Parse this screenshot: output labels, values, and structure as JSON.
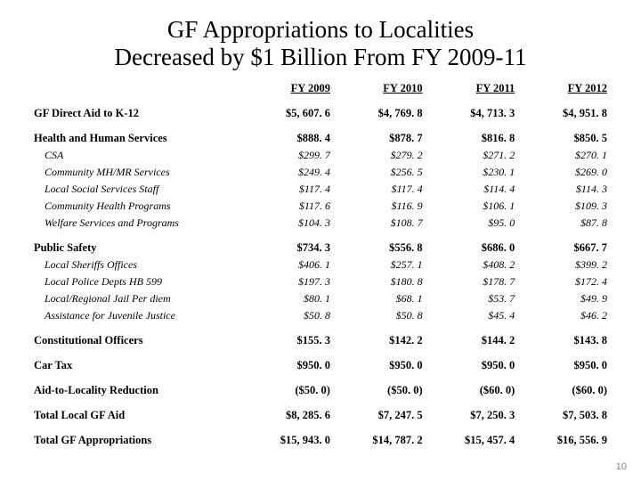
{
  "title_line1": "GF Appropriations to Localities",
  "title_line2": "Decreased by $1 Billion From FY 2009-11",
  "page_number": "10",
  "table": {
    "columns": [
      " FY 2009",
      " FY 2010",
      " FY 2011",
      " FY 2012"
    ],
    "col_align": "right",
    "label_col_width_pct": 36,
    "value_col_width_pct": 16,
    "header_font_weight": "bold",
    "header_underline": true,
    "rows": [
      {
        "style": "bold",
        "label": "GF Direct Aid to K-12",
        "v": [
          "$5, 607. 6",
          "$4, 769. 8",
          "$4, 713. 3",
          "$4, 951. 8"
        ]
      },
      {
        "style": "gap"
      },
      {
        "style": "bold",
        "label": "Health and Human Services",
        "v": [
          "$888. 4",
          "$878. 7",
          "$816. 8",
          "$850. 5"
        ]
      },
      {
        "style": "sub",
        "label": "CSA",
        "v": [
          "$299. 7",
          "$279. 2",
          "$271. 2",
          "$270. 1"
        ]
      },
      {
        "style": "sub",
        "label": "Community MH/MR Services",
        "v": [
          "$249. 4",
          "$256. 5",
          "$230. 1",
          "$269. 0"
        ]
      },
      {
        "style": "sub",
        "label": "Local Social Services Staff",
        "v": [
          "$117. 4",
          "$117. 4",
          "$114. 4",
          "$114. 3"
        ]
      },
      {
        "style": "sub",
        "label": "Community Health Programs",
        "v": [
          "$117. 6",
          "$116. 9",
          "$106. 1",
          "$109. 3"
        ]
      },
      {
        "style": "sub",
        "label": "Welfare Services and Programs",
        "v": [
          "$104. 3",
          "$108. 7",
          "$95. 0",
          "$87. 8"
        ]
      },
      {
        "style": "gap"
      },
      {
        "style": "bold",
        "label": "Public Safety",
        "v": [
          "$734. 3",
          "$556. 8",
          "$686. 0",
          "$667. 7"
        ]
      },
      {
        "style": "sub",
        "label": "Local Sheriffs Offices",
        "v": [
          "$406. 1",
          "$257. 1",
          "$408. 2",
          "$399. 2"
        ]
      },
      {
        "style": "sub",
        "label": "Local Police Depts HB 599",
        "v": [
          "$197. 3",
          "$180. 8",
          "$178. 7",
          "$172. 4"
        ]
      },
      {
        "style": "sub",
        "label": "Local/Regional Jail Per diem",
        "v": [
          "$80. 1",
          "$68. 1",
          "$53. 7",
          "$49. 9"
        ]
      },
      {
        "style": "sub",
        "label": "Assistance for Juvenile Justice",
        "v": [
          "$50. 8",
          "$50. 8",
          "$45. 4",
          "$46. 2"
        ]
      },
      {
        "style": "gap"
      },
      {
        "style": "bold",
        "label": "Constitutional Officers",
        "v": [
          "$155. 3",
          "$142. 2",
          "$144. 2",
          "$143. 8"
        ]
      },
      {
        "style": "gap"
      },
      {
        "style": "bold",
        "label": "Car Tax",
        "v": [
          "$950. 0",
          "$950. 0",
          "$950. 0",
          "$950. 0"
        ]
      },
      {
        "style": "gap"
      },
      {
        "style": "bold",
        "label": "Aid-to-Locality Reduction",
        "v": [
          "($50. 0)",
          "($50. 0)",
          "($60. 0)",
          "($60. 0)"
        ]
      },
      {
        "style": "gap"
      },
      {
        "style": "bold",
        "label": "Total Local GF Aid",
        "v": [
          "$8, 285. 6",
          "$7, 247. 5",
          "$7, 250. 3",
          "$7, 503. 8"
        ]
      },
      {
        "style": "gap"
      },
      {
        "style": "bold",
        "label": "Total GF Appropriations",
        "v": [
          "$15, 943. 0",
          "$14, 787. 2",
          "$15, 457. 4",
          "$16, 556. 9"
        ]
      }
    ]
  }
}
